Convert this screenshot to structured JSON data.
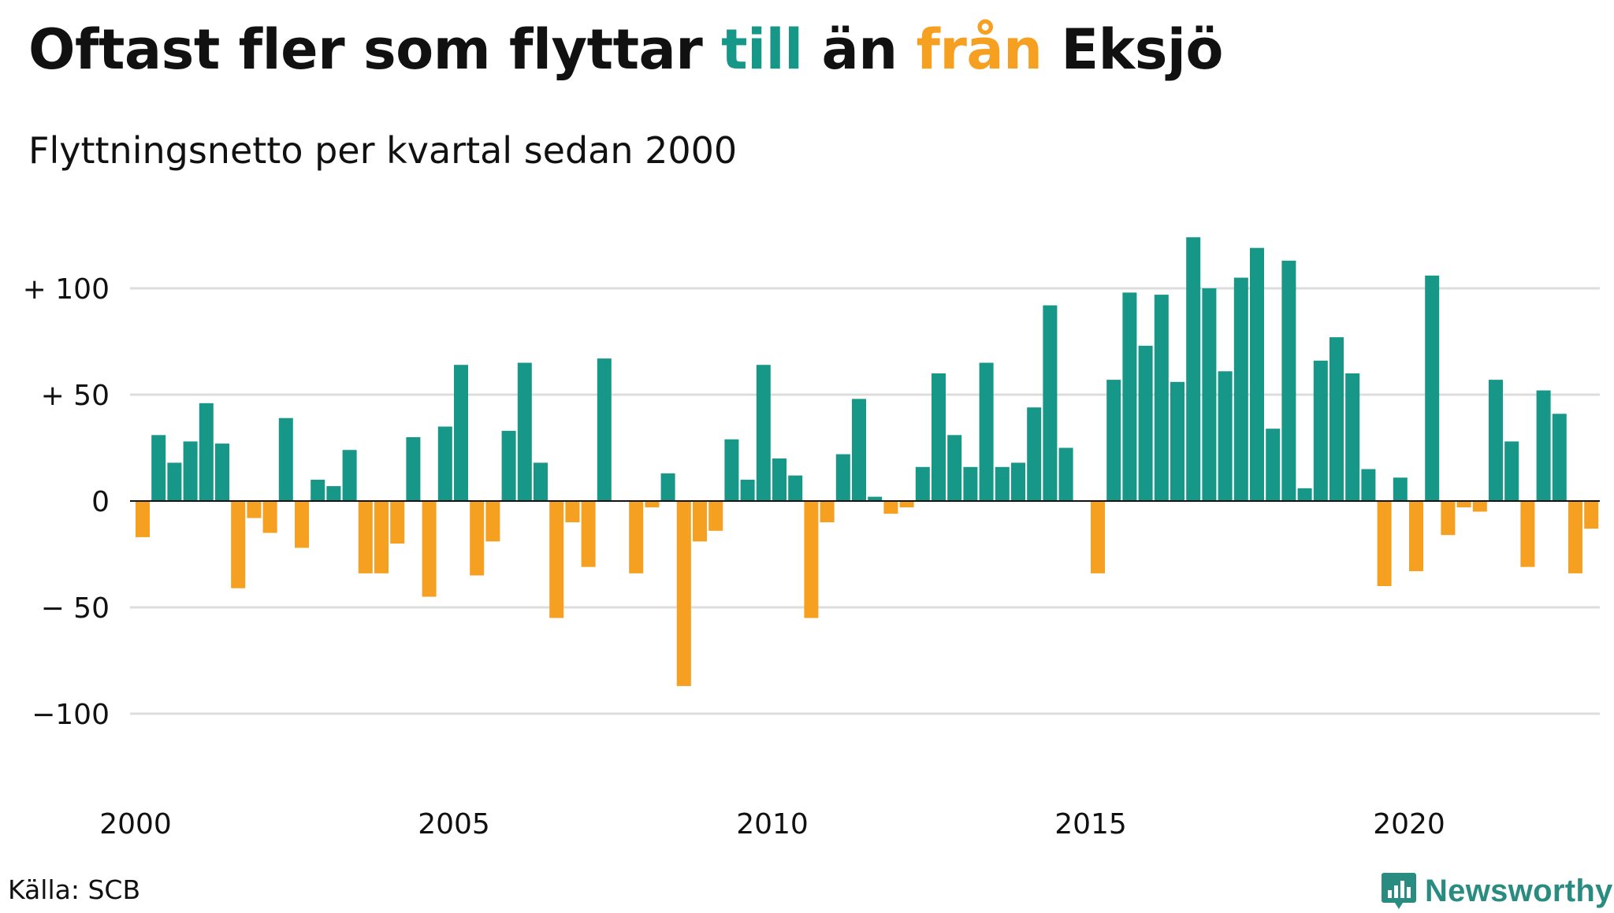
{
  "title": {
    "part1": "Oftast fler som flyttar ",
    "till": "till",
    "part2": " än ",
    "fran": "från",
    "part3": " Eksjö"
  },
  "subtitle": "Flyttningsnetto per kvartal sedan 2000",
  "source": "Källa: SCB",
  "brand": "Newsworthy",
  "colors": {
    "positive": "#179787",
    "negative": "#f5a020",
    "grid": "#dddddd"
  },
  "chart_data": {
    "type": "bar",
    "title": "Oftast fler som flyttar till än från Eksjö",
    "subtitle": "Flyttningsnetto per kvartal sedan 2000",
    "xlabel": "",
    "ylabel": "",
    "ylim": [
      -130,
      130
    ],
    "grid": true,
    "yticks": [
      {
        "value": 100,
        "label": "+ 100"
      },
      {
        "value": 50,
        "label": "+  50"
      },
      {
        "value": 0,
        "label": "0"
      },
      {
        "value": -50,
        "label": "− 50"
      },
      {
        "value": -100,
        "label": "−100"
      }
    ],
    "xticks": [
      {
        "year": 2000,
        "label": "2000"
      },
      {
        "year": 2005,
        "label": "2005"
      },
      {
        "year": 2010,
        "label": "2010"
      },
      {
        "year": 2015,
        "label": "2015"
      },
      {
        "year": 2020,
        "label": "2020"
      }
    ],
    "start": {
      "year": 2000,
      "quarter": 1
    },
    "values": [
      -17,
      31,
      18,
      28,
      46,
      27,
      -41,
      -8,
      -15,
      39,
      -22,
      10,
      7,
      24,
      -34,
      -34,
      -20,
      30,
      -45,
      35,
      64,
      -35,
      -19,
      33,
      65,
      18,
      -55,
      -10,
      -31,
      67,
      0,
      -34,
      -3,
      13,
      -87,
      -19,
      -14,
      29,
      10,
      64,
      20,
      12,
      -55,
      -10,
      22,
      48,
      2,
      -6,
      -3,
      16,
      60,
      31,
      16,
      65,
      16,
      18,
      44,
      92,
      25,
      0,
      -34,
      57,
      98,
      73,
      97,
      56,
      124,
      100,
      61,
      105,
      119,
      34,
      113,
      6,
      66,
      77,
      60,
      15,
      -40,
      11,
      -33,
      106,
      -16,
      -3,
      -5,
      57,
      28,
      -31,
      52,
      41,
      -34,
      -13
    ]
  }
}
